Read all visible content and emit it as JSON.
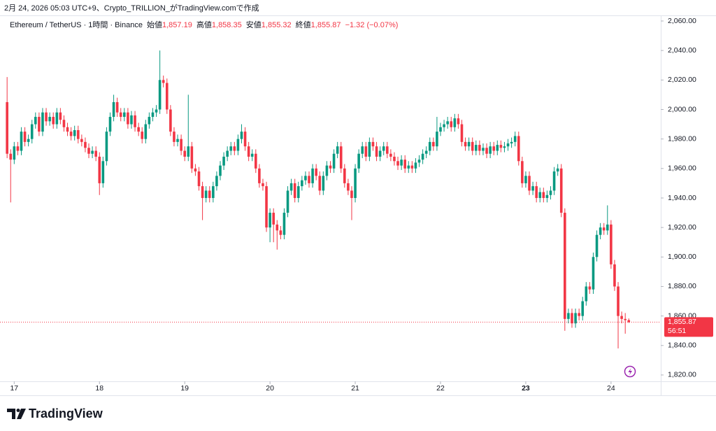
{
  "chart_data": {
    "type": "candlestick",
    "title": "2月 24, 2026 05:03 UTC+9、Crypto_TRILLION_がTradingView.comで作成",
    "legend": {
      "symbol": "Ethereum / TetherUS · 1時間 · Binance",
      "open_label": "始値",
      "open": "1,857.19",
      "high_label": "高値",
      "high": "1,858.35",
      "low_label": "安値",
      "low": "1,855.32",
      "close_label": "終値",
      "close": "1,855.87",
      "change": "−1.32 (−0.07%)"
    },
    "up_color": "#089981",
    "down_color": "#f23645",
    "open": [
      2005,
      1970,
      1966,
      1975,
      1972,
      1985,
      1978,
      1980,
      1990,
      1995,
      1985,
      1998,
      1992,
      1995,
      1990,
      1998,
      1993,
      1988,
      1985,
      1982,
      1986,
      1980,
      1978,
      1974,
      1970,
      1972,
      1968,
      1950,
      1965,
      1985,
      1995,
      2005,
      1998,
      1995,
      1998,
      1990,
      1996,
      1988,
      1985,
      1980,
      1990,
      1995,
      1998,
      2000,
      2020,
      2018,
      2000,
      1985,
      1978,
      1980,
      1972,
      1968,
      1975,
      1960,
      1958,
      1948,
      1940,
      1945,
      1940,
      1948,
      1955,
      1962,
      1968,
      1972,
      1975,
      1972,
      1980,
      1985,
      1975,
      1968,
      1970,
      1960,
      1950,
      1948,
      1920,
      1930,
      1922,
      1918,
      1915,
      1930,
      1945,
      1950,
      1940,
      1948,
      1952,
      1955,
      1950,
      1960,
      1955,
      1945,
      1955,
      1962,
      1960,
      1970,
      1975,
      1960,
      1950,
      1945,
      1940,
      1960,
      1970,
      1975,
      1968,
      1978,
      1975,
      1968,
      1972,
      1975,
      1970,
      1968,
      1965,
      1962,
      1966,
      1960,
      1962,
      1960,
      1964,
      1966,
      1970,
      1972,
      1978,
      1975,
      1985,
      1988,
      1990,
      1992,
      1988,
      1994,
      1990,
      1978,
      1975,
      1978,
      1972,
      1976,
      1972,
      1974,
      1970,
      1975,
      1972,
      1976,
      1974,
      1975,
      1977,
      1978,
      1982,
      1965,
      1950,
      1955,
      1945,
      1948,
      1940,
      1944,
      1940,
      1942,
      1945,
      1958,
      1960,
      1930,
      1858,
      1862,
      1855,
      1862,
      1860,
      1870,
      1880,
      1878,
      1900,
      1915,
      1920,
      1918,
      1922,
      1895,
      1880,
      1860,
      1858,
      1857.19
    ],
    "high": [
      2022,
      1973,
      1978,
      1978,
      1988,
      1988,
      1983,
      1993,
      1998,
      1998,
      2001,
      2001,
      1998,
      1998,
      2001,
      2001,
      1996,
      1991,
      1988,
      1989,
      1989,
      1983,
      1981,
      1977,
      1975,
      1975,
      1971,
      1968,
      1988,
      1998,
      2010,
      2008,
      2001,
      2001,
      2001,
      1999,
      1999,
      1991,
      1988,
      1993,
      1998,
      2001,
      2003,
      2040,
      2023,
      2021,
      2003,
      1988,
      1983,
      1983,
      1975,
      2010,
      1978,
      1963,
      1961,
      1951,
      1948,
      1948,
      1951,
      1958,
      1965,
      1971,
      1975,
      1978,
      1978,
      1983,
      1990,
      1988,
      1978,
      1973,
      1973,
      1963,
      1953,
      1951,
      1933,
      1933,
      1925,
      1921,
      1933,
      1948,
      1953,
      1953,
      1951,
      1955,
      1958,
      1958,
      1963,
      1963,
      1958,
      1958,
      1965,
      1965,
      1973,
      1978,
      1978,
      1963,
      1953,
      1948,
      1963,
      1973,
      1978,
      1978,
      1981,
      1981,
      1978,
      1975,
      1978,
      1978,
      1973,
      1971,
      1968,
      1969,
      1969,
      1965,
      1965,
      1967,
      1969,
      1973,
      1975,
      1981,
      1981,
      1995,
      1991,
      1993,
      1995,
      1995,
      1997,
      1997,
      1993,
      1981,
      1981,
      1981,
      1979,
      1979,
      1977,
      1977,
      1978,
      1978,
      1979,
      1979,
      1978,
      1980,
      1981,
      1985,
      1985,
      1968,
      1958,
      1958,
      1951,
      1951,
      1947,
      1947,
      1945,
      1948,
      1961,
      1963,
      1963,
      1933,
      1865,
      1865,
      1865,
      1865,
      1873,
      1883,
      1883,
      1903,
      1918,
      1923,
      1923,
      1935,
      1925,
      1898,
      1883,
      1863,
      1862,
      1858.35
    ],
    "low": [
      1967,
      1937,
      1963,
      1969,
      1969,
      1975,
      1975,
      1977,
      1987,
      1982,
      1982,
      1989,
      1989,
      1987,
      1987,
      1990,
      1985,
      1982,
      1979,
      1979,
      1977,
      1975,
      1971,
      1967,
      1967,
      1965,
      1942,
      1947,
      1962,
      1982,
      1992,
      1995,
      1992,
      1992,
      1987,
      1987,
      1985,
      1982,
      1977,
      1977,
      1987,
      1992,
      1995,
      1997,
      2015,
      1997,
      1982,
      1975,
      1975,
      1969,
      1965,
      1965,
      1957,
      1955,
      1945,
      1925,
      1937,
      1937,
      1937,
      1945,
      1952,
      1959,
      1965,
      1969,
      1969,
      1969,
      1977,
      1972,
      1965,
      1965,
      1957,
      1947,
      1945,
      1917,
      1910,
      1910,
      1905,
      1912,
      1912,
      1927,
      1942,
      1937,
      1937,
      1945,
      1949,
      1947,
      1947,
      1952,
      1942,
      1942,
      1952,
      1957,
      1957,
      1967,
      1957,
      1947,
      1942,
      1925,
      1937,
      1957,
      1967,
      1965,
      1965,
      1972,
      1965,
      1965,
      1969,
      1967,
      1965,
      1962,
      1959,
      1959,
      1957,
      1957,
      1957,
      1957,
      1961,
      1963,
      1967,
      1969,
      1972,
      1972,
      1982,
      1985,
      1987,
      1985,
      1985,
      1987,
      1975,
      1972,
      1972,
      1969,
      1969,
      1969,
      1969,
      1967,
      1967,
      1969,
      1969,
      1971,
      1971,
      1972,
      1974,
      1975,
      1962,
      1947,
      1947,
      1942,
      1942,
      1937,
      1937,
      1937,
      1937,
      1939,
      1942,
      1955,
      1927,
      1850,
      1855,
      1852,
      1852,
      1857,
      1857,
      1867,
      1875,
      1875,
      1897,
      1912,
      1915,
      1915,
      1892,
      1877,
      1838,
      1855,
      1848,
      1855.32
    ],
    "close": [
      1970,
      1966,
      1975,
      1972,
      1985,
      1978,
      1980,
      1990,
      1995,
      1985,
      1998,
      1992,
      1995,
      1990,
      1998,
      1993,
      1988,
      1985,
      1982,
      1986,
      1980,
      1978,
      1974,
      1970,
      1972,
      1968,
      1950,
      1965,
      1985,
      1995,
      2005,
      1998,
      1995,
      1998,
      1990,
      1996,
      1988,
      1985,
      1980,
      1990,
      1995,
      1998,
      2000,
      2020,
      2018,
      2000,
      1985,
      1978,
      1980,
      1972,
      1968,
      1975,
      1960,
      1958,
      1948,
      1940,
      1945,
      1940,
      1948,
      1955,
      1962,
      1968,
      1972,
      1975,
      1972,
      1980,
      1985,
      1975,
      1968,
      1970,
      1960,
      1950,
      1948,
      1920,
      1930,
      1922,
      1918,
      1915,
      1930,
      1945,
      1950,
      1940,
      1948,
      1952,
      1955,
      1950,
      1960,
      1955,
      1945,
      1955,
      1962,
      1960,
      1970,
      1975,
      1960,
      1950,
      1945,
      1940,
      1960,
      1970,
      1975,
      1968,
      1978,
      1975,
      1968,
      1972,
      1975,
      1970,
      1968,
      1965,
      1962,
      1966,
      1960,
      1962,
      1960,
      1964,
      1966,
      1970,
      1972,
      1978,
      1975,
      1985,
      1988,
      1990,
      1992,
      1988,
      1994,
      1990,
      1978,
      1975,
      1978,
      1972,
      1976,
      1972,
      1974,
      1970,
      1975,
      1972,
      1976,
      1974,
      1975,
      1977,
      1978,
      1982,
      1965,
      1950,
      1955,
      1945,
      1948,
      1940,
      1944,
      1940,
      1942,
      1945,
      1958,
      1960,
      1930,
      1858,
      1862,
      1855,
      1862,
      1860,
      1870,
      1880,
      1878,
      1900,
      1915,
      1920,
      1918,
      1922,
      1895,
      1880,
      1860,
      1858,
      1857.19,
      1855.87
    ],
    "xlim": [
      -2,
      184
    ],
    "xticks": [
      {
        "value": 2,
        "label": "17"
      },
      {
        "value": 26,
        "label": "18"
      },
      {
        "value": 50,
        "label": "19"
      },
      {
        "value": 74,
        "label": "20"
      },
      {
        "value": 98,
        "label": "21"
      },
      {
        "value": 122,
        "label": "22"
      },
      {
        "value": 146,
        "label": "23"
      },
      {
        "value": 170,
        "label": "24"
      }
    ],
    "ylim": [
      1815.7,
      2063.8
    ],
    "yticks": [
      {
        "value": 2060,
        "label": "2,060.00"
      },
      {
        "value": 2040,
        "label": "2,040.00"
      },
      {
        "value": 2020,
        "label": "2,020.00"
      },
      {
        "value": 2000,
        "label": "2,000.00"
      },
      {
        "value": 1980,
        "label": "1,980.00"
      },
      {
        "value": 1960,
        "label": "1,960.00"
      },
      {
        "value": 1940,
        "label": "1,940.00"
      },
      {
        "value": 1920,
        "label": "1,920.00"
      },
      {
        "value": 1900,
        "label": "1,900.00"
      },
      {
        "value": 1880,
        "label": "1,880.00"
      },
      {
        "value": 1860,
        "label": "1,860.00"
      },
      {
        "value": 1840,
        "label": "1,840.00"
      },
      {
        "value": 1820,
        "label": "1,820.00"
      }
    ],
    "grid": false,
    "price_label": {
      "value": "1,855.87",
      "countdown": "56:51"
    },
    "watermark": "TradingView"
  }
}
